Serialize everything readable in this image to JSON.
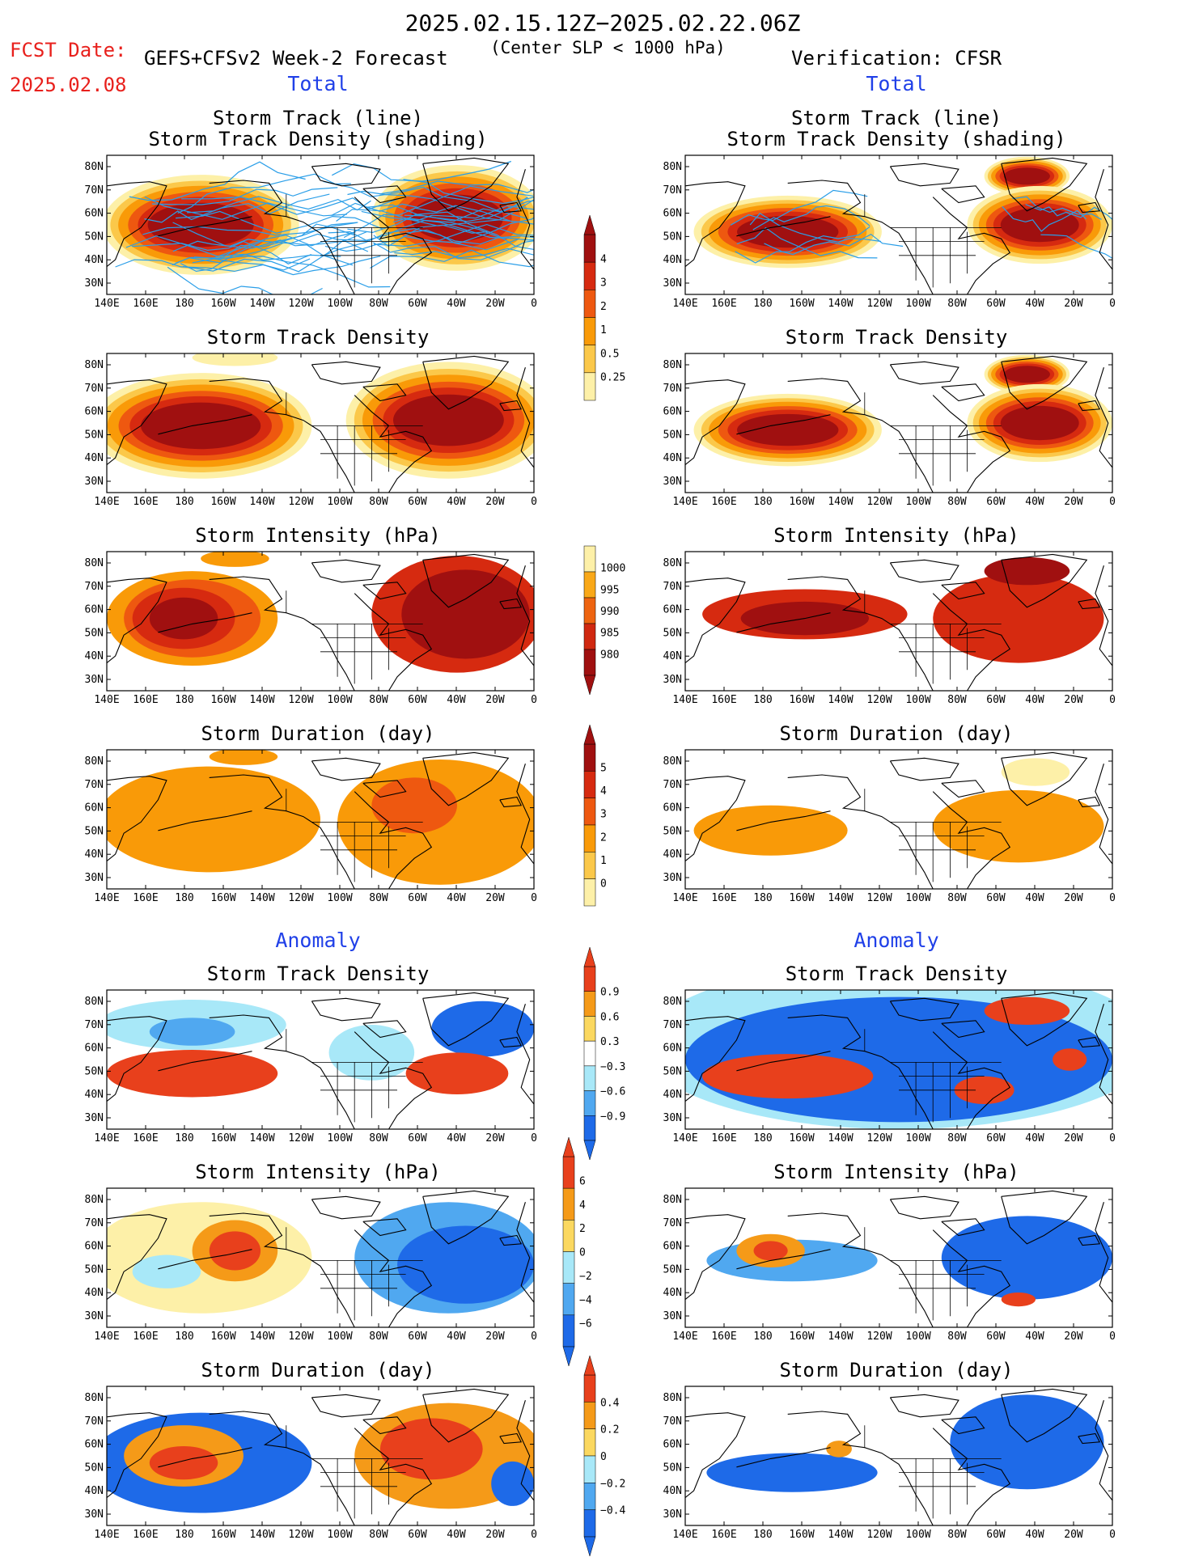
{
  "header": {
    "title": "2025.02.15.12Z−2025.02.22.06Z",
    "fcst_label": "FCST Date:",
    "fcst_date": "2025.02.08",
    "model": "GEFS+CFSv2 Week-2 Forecast",
    "criterion": "(Center SLP < 1000 hPa)",
    "verification": "Verification: CFSR"
  },
  "sections": {
    "total_left": "Total",
    "total_right": "Total",
    "anomaly_left": "Anomaly",
    "anomaly_right": "Anomaly"
  },
  "panels": [
    {
      "row": 0,
      "title1": "Storm Track (line)",
      "title2": "Storm Track Density (shading)"
    },
    {
      "row": 1,
      "title1": "Storm Track Density"
    },
    {
      "row": 2,
      "title1": "Storm Intensity (hPa)"
    },
    {
      "row": 3,
      "title1": "Storm Duration (day)"
    },
    {
      "row": 4,
      "title1": "Storm Track Density"
    },
    {
      "row": 5,
      "title1": "Storm Intensity (hPa)"
    },
    {
      "row": 6,
      "title1": "Storm Duration (day)"
    }
  ],
  "axes": {
    "x_ticks": [
      "140E",
      "160E",
      "180",
      "160W",
      "140W",
      "120W",
      "100W",
      "80W",
      "60W",
      "40W",
      "20W",
      "0"
    ],
    "y_ticks": [
      "80N",
      "70N",
      "60N",
      "50N",
      "40N",
      "30N"
    ]
  },
  "colorbars": [
    {
      "name": "track-density-total",
      "labels": [
        "4",
        "3",
        "2",
        "1",
        "0.5",
        "0.25"
      ],
      "colors": [
        "#a01010",
        "#d62a10",
        "#ee5810",
        "#f99a08",
        "#fbc84a",
        "#fdf0a8"
      ]
    },
    {
      "name": "intensity-total",
      "labels": [
        "1000",
        "995",
        "990",
        "985",
        "980"
      ],
      "colors": [
        "#fdf0a8",
        "#f9a818",
        "#ee6410",
        "#d02810",
        "#a01010"
      ]
    },
    {
      "name": "duration-total",
      "labels": [
        "5",
        "4",
        "3",
        "2",
        "1",
        "0"
      ],
      "colors": [
        "#a01010",
        "#d62a10",
        "#ee5810",
        "#f99a08",
        "#fbc84a",
        "#fdf0a8"
      ]
    },
    {
      "name": "track-density-anom",
      "labels": [
        "0.9",
        "0.6",
        "0.3",
        "−0.3",
        "−0.6",
        "−0.9"
      ],
      "colors": [
        "#e8401c",
        "#f59a18",
        "#fbd860",
        "#ffffff",
        "#a8e8f8",
        "#50a8f0",
        "#1e6ae8"
      ]
    },
    {
      "name": "intensity-anom",
      "labels": [
        "6",
        "4",
        "2",
        "0",
        "−2",
        "−4",
        "−6"
      ],
      "colors": [
        "#e8401c",
        "#f59a18",
        "#fbd860",
        "#a8e8f8",
        "#50a8f0",
        "#1e6ae8"
      ]
    },
    {
      "name": "duration-anom",
      "labels": [
        "0.4",
        "0.2",
        "0",
        "−0.2",
        "−0.4"
      ],
      "colors": [
        "#e8401c",
        "#f59a18",
        "#fbd860",
        "#a8e8f8",
        "#50a8f0",
        "#1e6ae8"
      ]
    }
  ],
  "colors": {
    "dark_red": "#a01010",
    "red": "#d62a10",
    "orange_red": "#ee5810",
    "orange": "#f99a08",
    "light_orange": "#fbc84a",
    "pale_yellow": "#fdf0a8",
    "blue": "#1e6ae8",
    "mid_blue": "#50a8f0",
    "light_blue": "#a8e8f8",
    "track_line": "#2a9ee8"
  }
}
